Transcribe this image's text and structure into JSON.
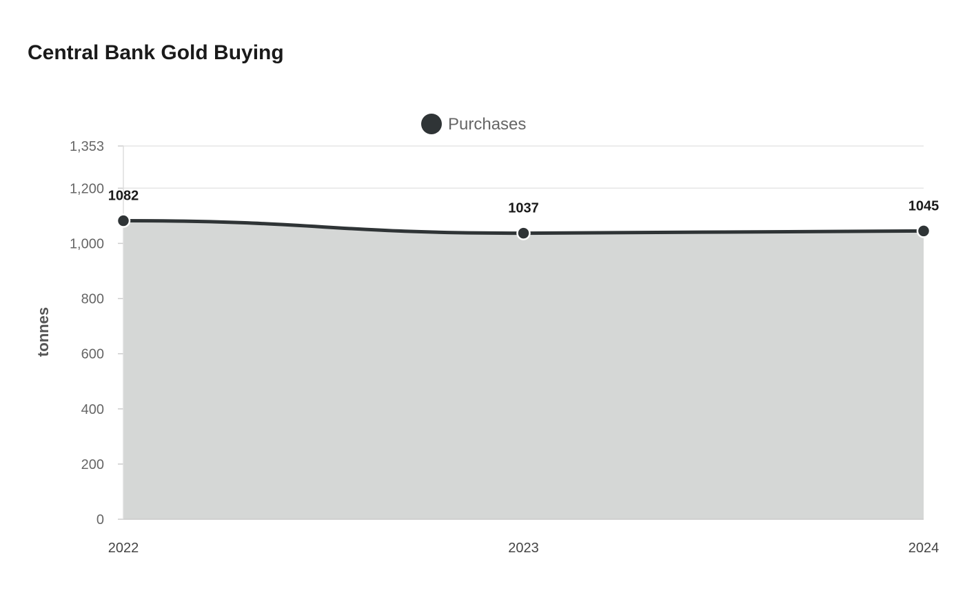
{
  "chart_data": {
    "type": "area",
    "title": "Central Bank Gold Buying",
    "ylabel": "tonnes",
    "xlabel": "",
    "categories": [
      "2022",
      "2023",
      "2024"
    ],
    "series": [
      {
        "name": "Purchases",
        "values": [
          1082,
          1037,
          1045
        ],
        "color": "#2f3436",
        "fill": "#d5d7d6"
      }
    ],
    "ylim": [
      0,
      1353
    ],
    "yticks": [
      0,
      200,
      400,
      600,
      800,
      1000,
      1200,
      1353
    ],
    "ytick_labels": [
      "0",
      "200",
      "400",
      "600",
      "800",
      "1,000",
      "1,200",
      "1,353"
    ],
    "grid": true,
    "legend_position": "top",
    "data_labels": true
  }
}
